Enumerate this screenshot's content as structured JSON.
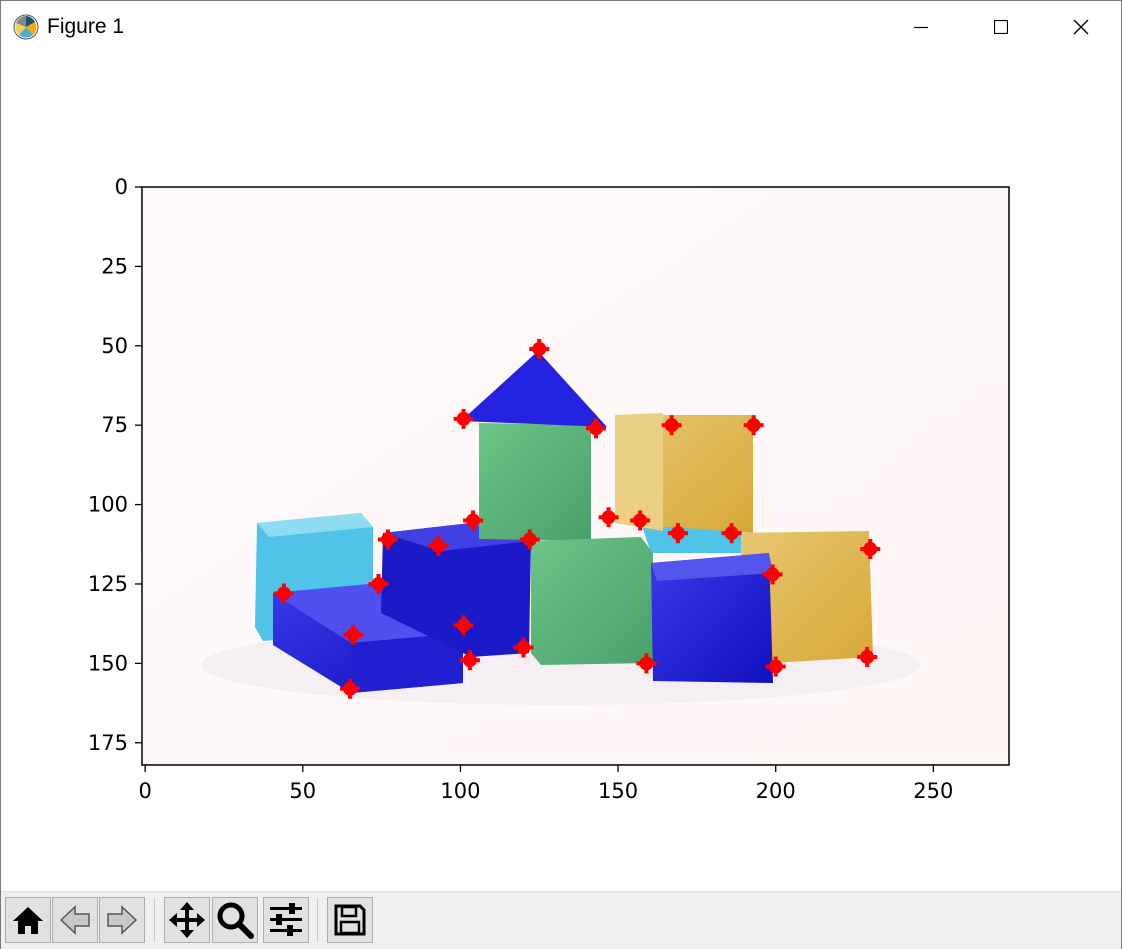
{
  "window": {
    "title": "Figure 1",
    "app_icon": "matplotlib-icon",
    "controls": [
      "minimize-icon",
      "maximize-icon",
      "close-icon"
    ]
  },
  "toolbar": {
    "buttons": [
      "home-icon",
      "back-icon",
      "forward-icon",
      "pan-icon",
      "zoom-icon",
      "configure-subplots-icon",
      "save-icon"
    ]
  },
  "chart_data": {
    "type": "scatter",
    "title": "",
    "xlabel": "",
    "ylabel": "",
    "xlim": [
      -1,
      274
    ],
    "ylim": [
      182,
      0
    ],
    "x_ticks": [
      0,
      50,
      100,
      150,
      200,
      250
    ],
    "y_ticks": [
      0,
      25,
      50,
      75,
      100,
      125,
      150,
      175
    ],
    "background_image": "photo of toy building blocks (blue, green, yellow, cyan) on white background",
    "marker": {
      "shape": "plus-filled",
      "color": "#ff0000"
    },
    "points": [
      {
        "x": 125,
        "y": 51
      },
      {
        "x": 101,
        "y": 73
      },
      {
        "x": 143,
        "y": 76
      },
      {
        "x": 167,
        "y": 75
      },
      {
        "x": 193,
        "y": 75
      },
      {
        "x": 104,
        "y": 105
      },
      {
        "x": 147,
        "y": 104
      },
      {
        "x": 157,
        "y": 105
      },
      {
        "x": 169,
        "y": 109
      },
      {
        "x": 186,
        "y": 109
      },
      {
        "x": 77,
        "y": 111
      },
      {
        "x": 93,
        "y": 113
      },
      {
        "x": 122,
        "y": 111
      },
      {
        "x": 230,
        "y": 114
      },
      {
        "x": 199,
        "y": 122
      },
      {
        "x": 74,
        "y": 125
      },
      {
        "x": 44,
        "y": 128
      },
      {
        "x": 101,
        "y": 138
      },
      {
        "x": 66,
        "y": 141
      },
      {
        "x": 120,
        "y": 145
      },
      {
        "x": 103,
        "y": 149
      },
      {
        "x": 159,
        "y": 150
      },
      {
        "x": 200,
        "y": 151
      },
      {
        "x": 229,
        "y": 148
      },
      {
        "x": 65,
        "y": 158
      }
    ]
  }
}
